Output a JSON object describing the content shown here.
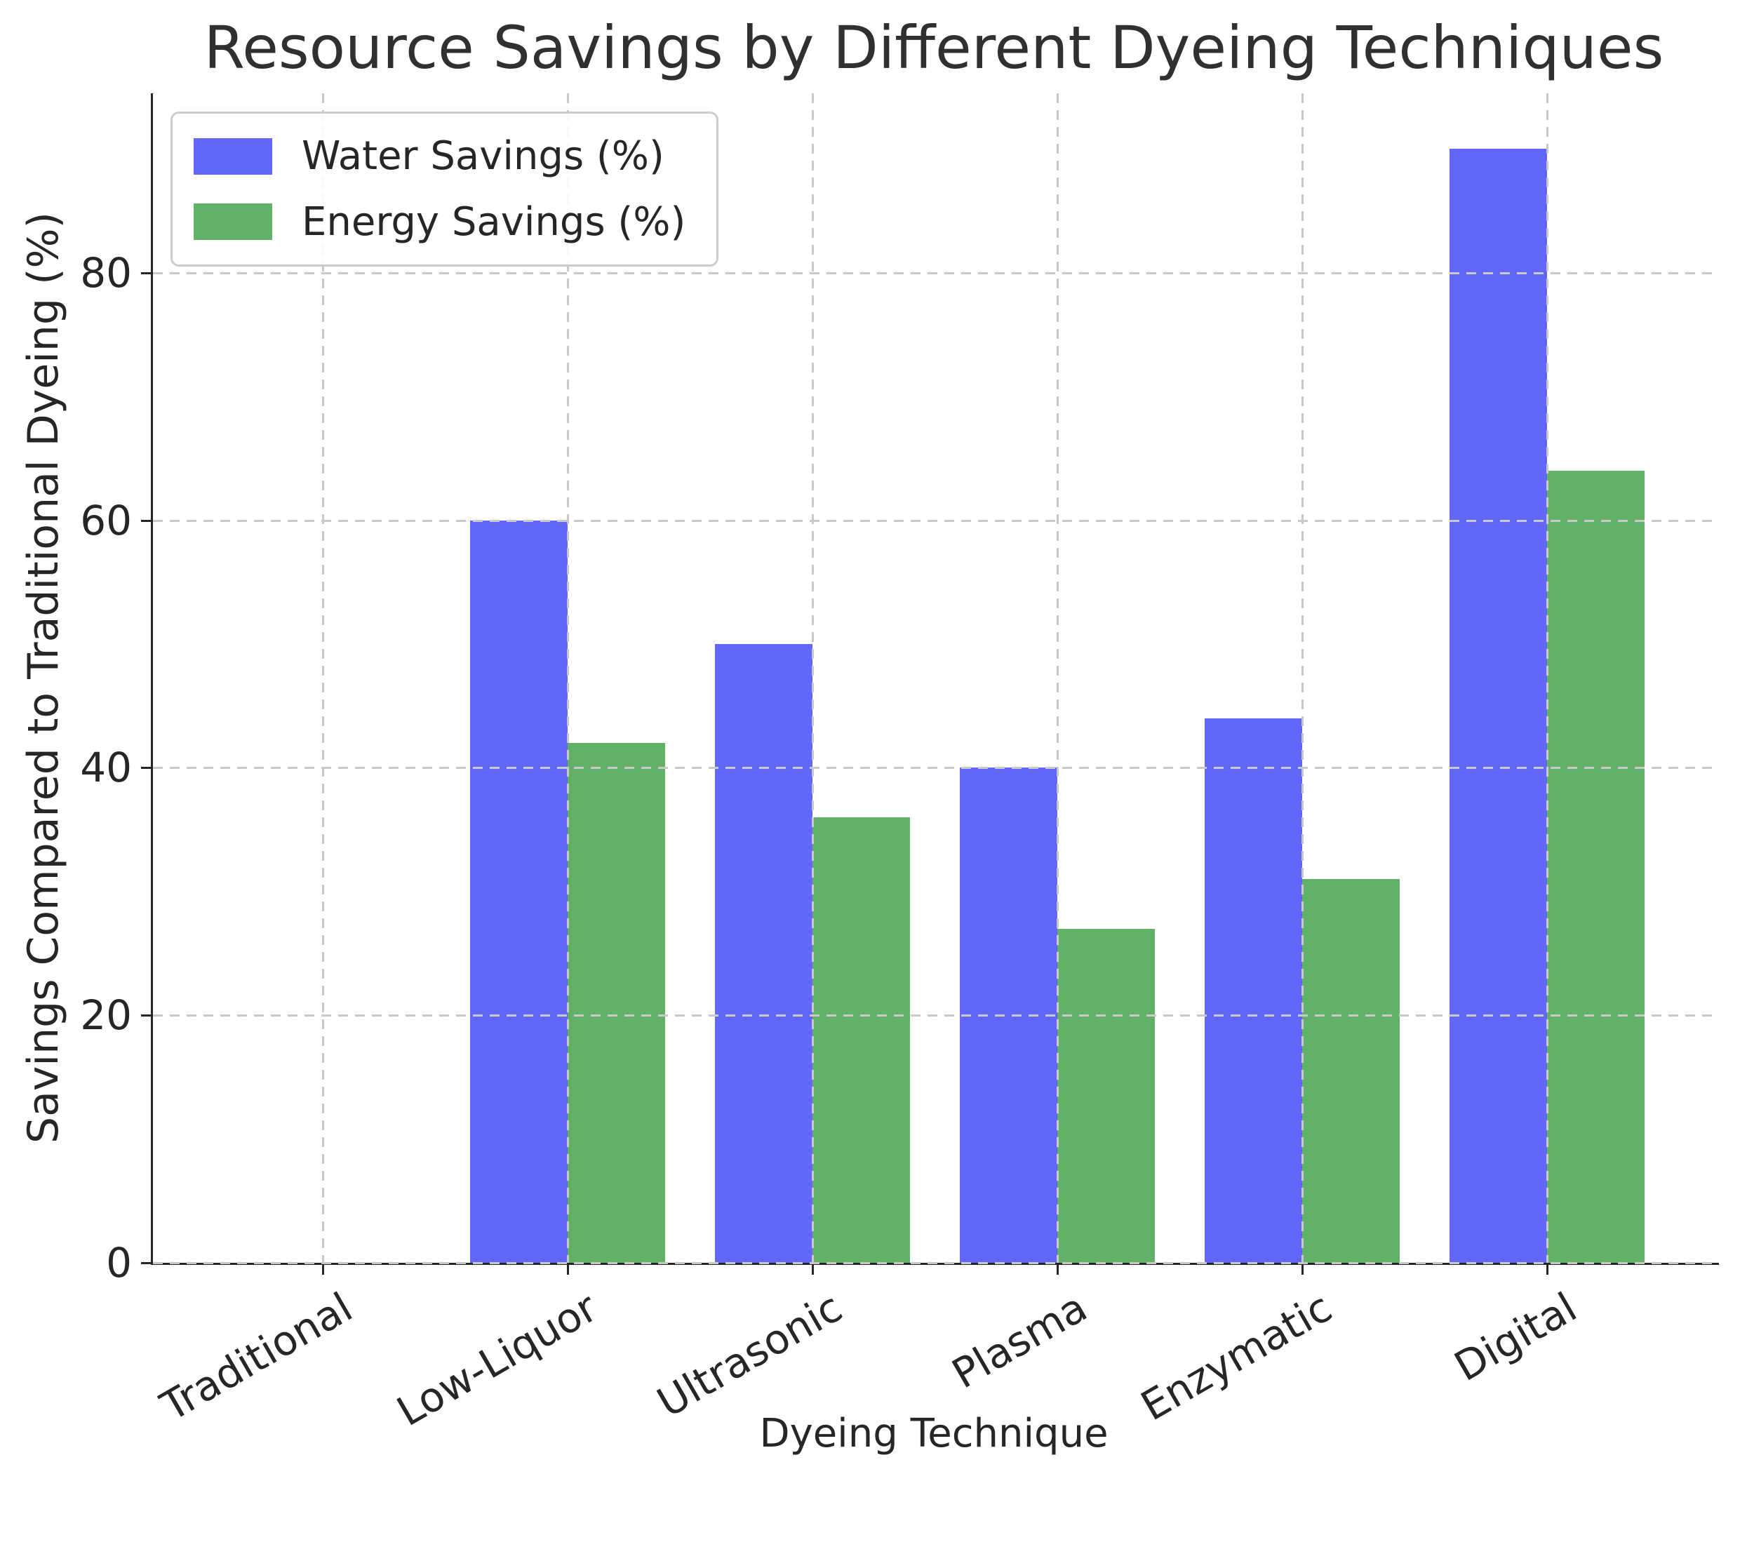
{
  "title": "Resource Savings by Different Dyeing Techniques",
  "y_axis_label": "Savings Compared to Traditional Dyeing (%)",
  "x_axis_label": "Dyeing Technique",
  "legend": {
    "items": [
      {
        "label": "Water Savings (%)",
        "color": "#6366FA"
      },
      {
        "label": "Energy Savings (%)",
        "color": "#63B166"
      }
    ]
  },
  "colors": {
    "water": "#6366FA",
    "energy": "#63B166",
    "grid": "#c9c9c9",
    "spine": "#262626",
    "text": "#262626"
  },
  "chart_data": {
    "type": "bar",
    "title": "Resource Savings by Different Dyeing Techniques",
    "xlabel": "Dyeing Technique",
    "ylabel": "Savings Compared to Traditional Dyeing (%)",
    "categories": [
      "Traditional",
      "Low-Liquor",
      "Ultrasonic",
      "Plasma",
      "Enzymatic",
      "Digital"
    ],
    "series": [
      {
        "name": "Water Savings (%)",
        "color": "#6366FA",
        "values": [
          0,
          60,
          50,
          40,
          44,
          90
        ]
      },
      {
        "name": "Energy Savings (%)",
        "color": "#63B166",
        "values": [
          0,
          42,
          36,
          27,
          31,
          64
        ]
      }
    ],
    "ylim": [
      0,
      94.5
    ],
    "yticks": [
      0,
      20,
      40,
      60,
      80
    ],
    "grid": "both-dashed",
    "grid_over_bars": true,
    "legend_position": "upper left",
    "xtick_rotation_deg": 30
  }
}
